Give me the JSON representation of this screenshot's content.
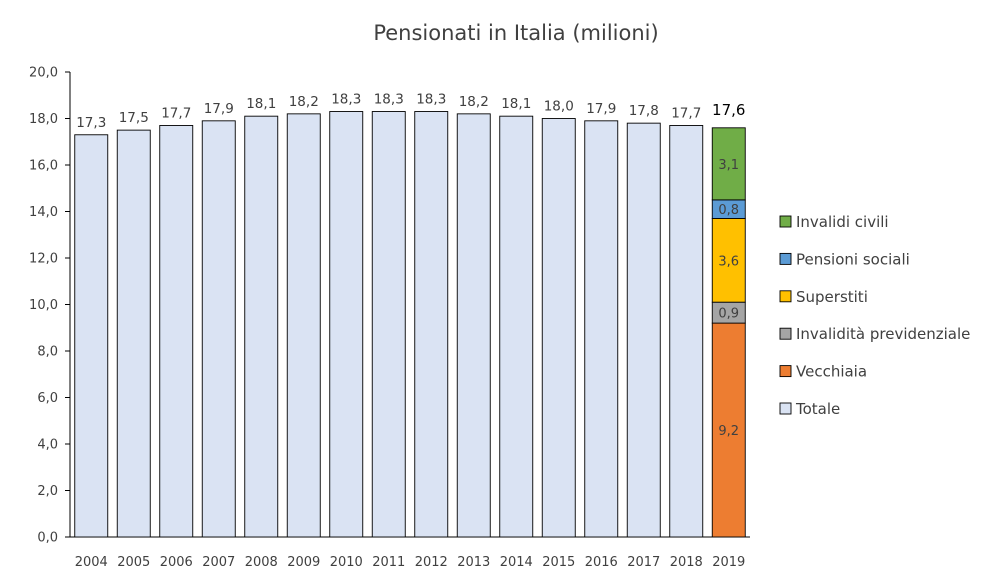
{
  "chart_data": {
    "type": "bar",
    "title": "Pensionati in Italia (milioni)",
    "xlabel": "",
    "ylabel": "",
    "ylim": [
      0,
      20
    ],
    "yticks": [
      "0,0",
      "2,0",
      "4,0",
      "6,0",
      "8,0",
      "10,0",
      "12,0",
      "14,0",
      "16,0",
      "18,0",
      "20,0"
    ],
    "grid": false,
    "legend_position": "right",
    "categories": [
      "2004",
      "2005",
      "2006",
      "2007",
      "2008",
      "2009",
      "2010",
      "2011",
      "2012",
      "2013",
      "2014",
      "2015",
      "2016",
      "2017",
      "2018",
      "2019"
    ],
    "series": [
      {
        "name": "Totale",
        "color": "#dae3f3",
        "values": [
          17.3,
          17.5,
          17.7,
          17.9,
          18.1,
          18.2,
          18.3,
          18.3,
          18.3,
          18.2,
          18.1,
          18.0,
          17.9,
          17.8,
          17.7,
          null
        ],
        "labels": [
          "17,3",
          "17,5",
          "17,7",
          "17,9",
          "18,1",
          "18,2",
          "18,3",
          "18,3",
          "18,3",
          "18,2",
          "18,1",
          "18,0",
          "17,9",
          "17,8",
          "17,7",
          ""
        ]
      },
      {
        "name": "Vecchiaia",
        "color": "#ed7d31",
        "category": "2019",
        "value": 9.2,
        "label": "9,2"
      },
      {
        "name": "Invalidità previdenziale",
        "color": "#a5a5a5",
        "category": "2019",
        "value": 0.9,
        "label": "0,9"
      },
      {
        "name": "Superstiti",
        "color": "#ffc000",
        "category": "2019",
        "value": 3.6,
        "label": "3,6"
      },
      {
        "name": "Pensioni sociali",
        "color": "#5b9bd5",
        "category": "2019",
        "value": 0.8,
        "label": "0,8"
      },
      {
        "name": "Invalidi civili",
        "color": "#70ad47",
        "category": "2019",
        "value": 3.1,
        "label": "3,1"
      }
    ],
    "stack_total_2019": {
      "value": 17.6,
      "label": "17,6"
    },
    "legend_order": [
      "Invalidi civili",
      "Pensioni sociali",
      "Superstiti",
      "Invalidità previdenziale",
      "Vecchiaia",
      "Totale"
    ]
  }
}
